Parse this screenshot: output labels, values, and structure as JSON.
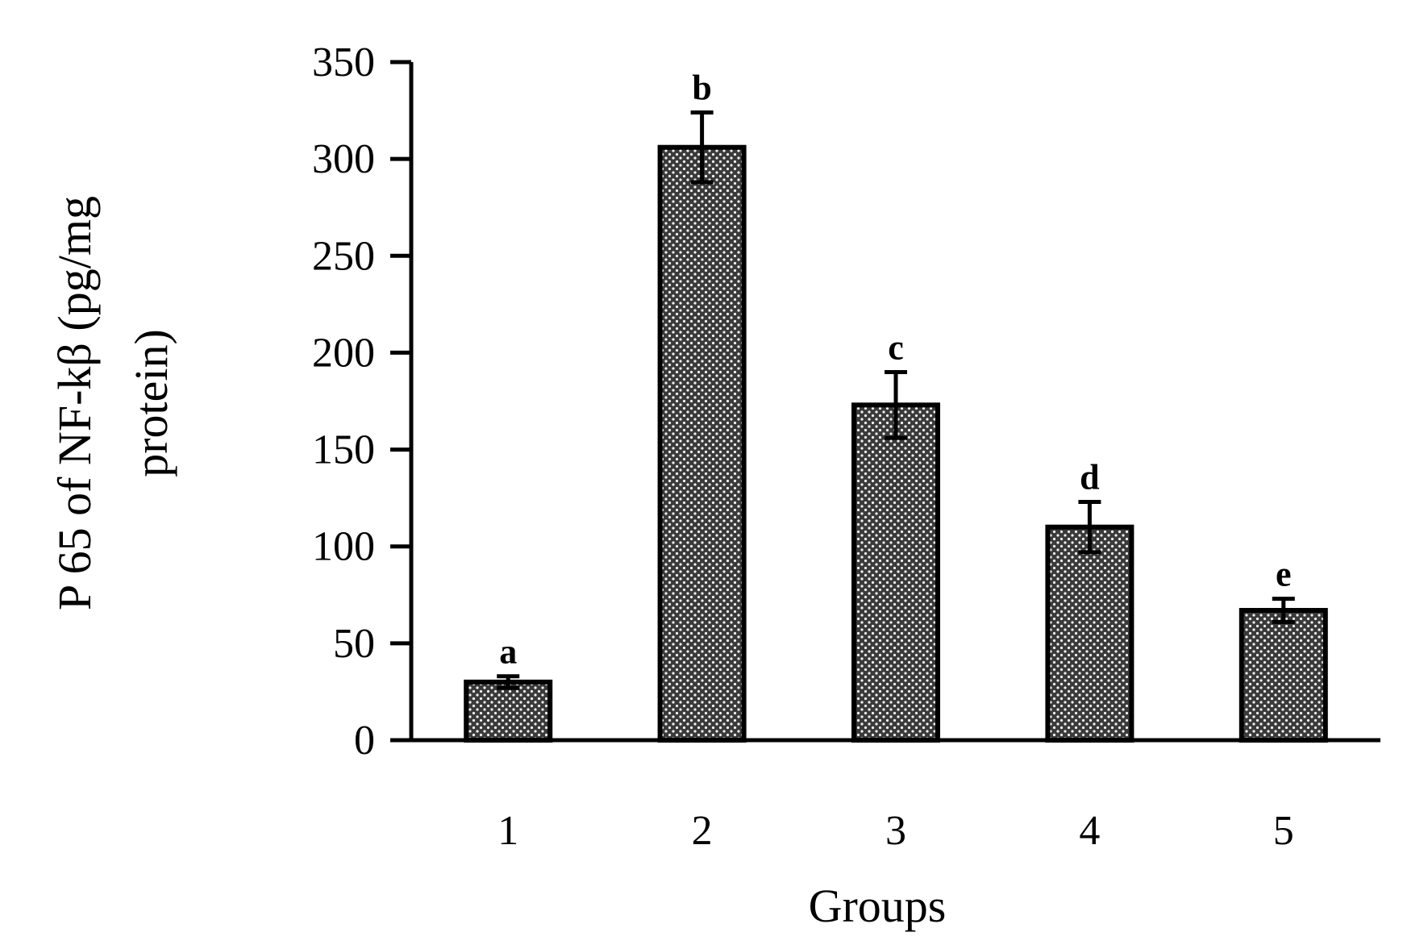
{
  "chart_data": {
    "type": "bar",
    "title": "",
    "xlabel": "Groups",
    "ylabel_lines": [
      "P 65 of NF-kβ (pg/mg",
      "protein)"
    ],
    "categories": [
      "1",
      "2",
      "3",
      "4",
      "5"
    ],
    "values": [
      30,
      306,
      173,
      110,
      67
    ],
    "errors": [
      3,
      18,
      17,
      13,
      6
    ],
    "significance_labels": [
      "a",
      "b",
      "c",
      "d",
      "e"
    ],
    "ylim": [
      0,
      350
    ],
    "yticks": [
      0,
      50,
      100,
      150,
      200,
      250,
      300,
      350
    ],
    "grid": false,
    "legend": "none",
    "bar_pattern": "dotted-dark",
    "colors": {
      "bar_fill": "#3a3a3a",
      "bar_dots": "#ffffff",
      "axis": "#000000"
    }
  }
}
